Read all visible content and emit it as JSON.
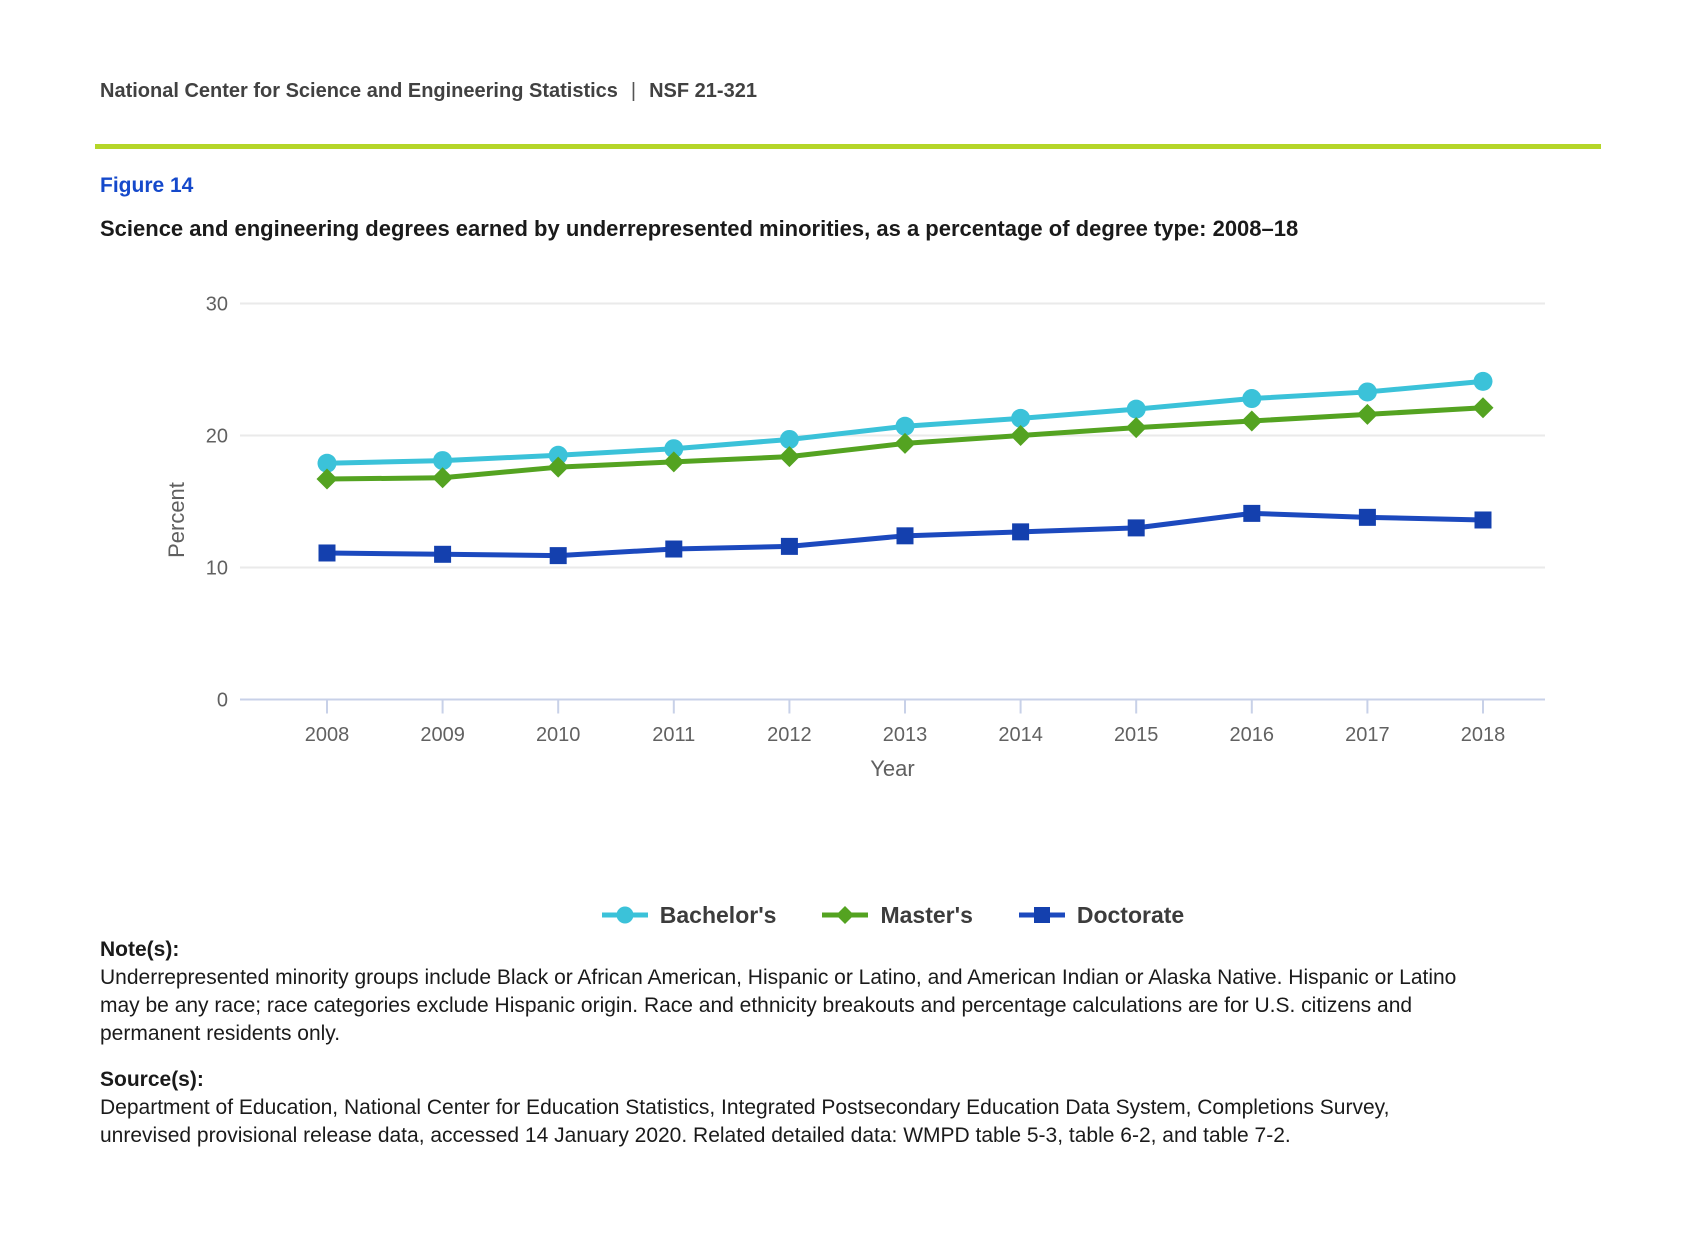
{
  "header": {
    "org": "National Center for Science and Engineering Statistics",
    "separator": "|",
    "report_number": "NSF 21-321"
  },
  "figure": {
    "label": "Figure 14",
    "title": "Science and engineering degrees earned by underrepresented minorities, as a percentage of degree type: 2008–18"
  },
  "chart_data": {
    "type": "line",
    "x": [
      2008,
      2009,
      2010,
      2011,
      2012,
      2013,
      2014,
      2015,
      2016,
      2017,
      2018
    ],
    "series": [
      {
        "name": "Bachelor's",
        "marker": "circle",
        "color": "#3bc2d9",
        "marker_color": "#3bc2d9",
        "values": [
          17.9,
          18.1,
          18.5,
          19.0,
          19.7,
          20.7,
          21.3,
          22.0,
          22.8,
          23.3,
          24.1
        ]
      },
      {
        "name": "Master's",
        "marker": "diamond",
        "color": "#54a321",
        "marker_color": "#54a321",
        "values": [
          16.7,
          16.8,
          17.6,
          18.0,
          18.4,
          19.4,
          20.0,
          20.6,
          21.1,
          21.6,
          22.1
        ]
      },
      {
        "name": "Doctorate",
        "marker": "square",
        "color": "#1c49be",
        "marker_color": "#1440ae",
        "values": [
          11.1,
          11.0,
          10.9,
          11.4,
          11.6,
          12.4,
          12.7,
          13.0,
          14.1,
          13.8,
          13.6
        ]
      }
    ],
    "xlabel": "Year",
    "ylabel": "Percent",
    "ylim": [
      0,
      30
    ],
    "yticks": [
      0,
      10,
      20,
      30
    ],
    "grid": true,
    "legend_position": "bottom"
  },
  "notes": {
    "heading": "Note(s):",
    "body": "Underrepresented minority groups include Black or African American, Hispanic or Latino, and American Indian or Alaska Native. Hispanic or Latino\nmay be any race; race categories exclude Hispanic origin. Race and ethnicity breakouts and percentage calculations are for U.S. citizens and\npermanent residents only."
  },
  "sources": {
    "heading": "Source(s):",
    "body": "Department of Education, National Center for Education Statistics, Integrated Postsecondary Education Data System, Completions Survey,\nunrevised provisional release data, accessed 14 January 2020. Related detailed data: WMPD table 5-3, table 6-2, and table 7-2."
  },
  "colors": {
    "accent_rule": "#b5d629",
    "figure_label": "#1549cb",
    "grid_line": "#eaeaea",
    "axis_line": "#c8d1e8",
    "tick_label": "#616161",
    "legend_text": "#3c3c3c",
    "header_text": "#414141"
  }
}
